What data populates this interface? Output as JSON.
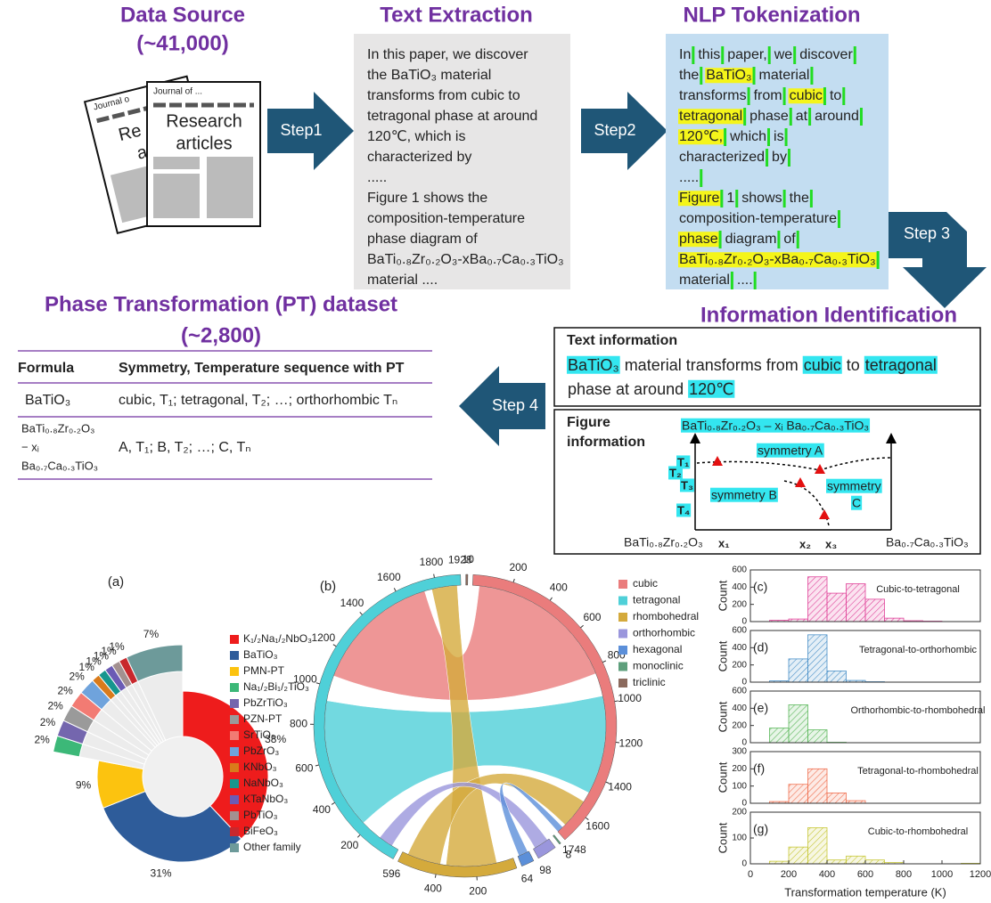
{
  "workflow": {
    "source": {
      "title": "Data Source",
      "count": "(~41,000)",
      "journal_back": "Journal o",
      "paper_back": [
        "Re",
        "a"
      ],
      "journal": "Journal of ...",
      "paper_lines": [
        "Research",
        "articles"
      ]
    },
    "steps": [
      "Step1",
      "Step2",
      "Step 3",
      "Step 4"
    ],
    "extraction": {
      "title": "Text Extraction",
      "lines": [
        "In this paper, we discover",
        "the BaTiO₃ material",
        "transforms from cubic to",
        "tetragonal phase at around",
        "120℃, which is",
        "characterized by",
        ".....",
        "Figure 1 shows the",
        "composition-temperature",
        "phase diagram of",
        "BaTi₀.₈Zr₀.₂O₃-xBa₀.₇Ca₀.₃TiO₃",
        "material ...."
      ]
    },
    "tokenization": {
      "title": "NLP Tokenization",
      "lines": [
        [
          "In",
          "this",
          "paper,",
          "we",
          "discover"
        ],
        [
          "the",
          {
            "text": "BaTiO₃",
            "highlight": true
          },
          "material"
        ],
        [
          "transforms",
          "from",
          {
            "text": "cubic",
            "highlight": true
          },
          "to"
        ],
        [
          {
            "text": "tetragonal",
            "highlight": true
          },
          "phase",
          "at",
          "around"
        ],
        [
          {
            "text": "120℃,",
            "highlight": true
          },
          "which",
          "is"
        ],
        [
          "characterized",
          "by"
        ],
        [
          "....."
        ],
        [
          {
            "text": "Figure",
            "highlight": true
          },
          "1",
          "shows",
          "the"
        ],
        [
          "composition-temperature"
        ],
        [
          {
            "text": "phase",
            "highlight": true
          },
          "diagram",
          "of"
        ],
        [
          {
            "text": "BaTi₀.₈Zr₀.₂O₃-xBa₀.₇Ca₀.₃TiO₃",
            "highlight": true
          }
        ],
        [
          "material",
          "...."
        ]
      ]
    },
    "identification": {
      "title": "Information Identification",
      "text_info": {
        "title": "Text information",
        "lines": [
          [
            {
              "text": "BaTiO₃",
              "highlight": true
            },
            "material transforms from",
            {
              "text": "cubic",
              "highlight": true
            },
            "to",
            {
              "text": "tetragonal",
              "highlight": true
            }
          ],
          [
            "phase at around",
            {
              "text": "120℃",
              "highlight": true
            }
          ]
        ]
      },
      "figure_info": {
        "title": [
          "Figure",
          "information"
        ],
        "formula": "BaTi₀.₈Zr₀.₂O₃ – xᵢ Ba₀.₇Ca₀.₃TiO₃",
        "regions": [
          "symmetry A",
          "symmetry B",
          "symmetry",
          "C"
        ],
        "temps": [
          "T₁",
          "T₂",
          "T₃",
          "T₄"
        ],
        "xs": [
          "x₁",
          "x₂",
          "x₃"
        ],
        "left_end": "BaTi₀.₈Zr₀.₂O₃",
        "right_end": "Ba₀.₇Ca₀.₃TiO₃"
      }
    }
  },
  "dataset": {
    "title": "Phase Transformation (PT) dataset",
    "count": "(~2,800)",
    "headers": [
      "Formula",
      "Symmetry, Temperature sequence with PT"
    ],
    "rows": [
      [
        "BaTiO₃",
        "cubic, T₁; tetragonal, T₂; …; orthorhombic Tₙ"
      ],
      [
        [
          "BaTi₀.₈Zr₀.₂O₃",
          "− xᵢ",
          "Ba₀.₇Ca₀.₃TiO₃"
        ],
        "A, T₁; B, T₂; …; C, Tₙ"
      ]
    ]
  },
  "chart_data": [
    {
      "type": "pie",
      "panel": "(a)",
      "categories": [
        "K₁/₂Na₁/₂NbO₃",
        "BaTiO₃",
        "PMN-PT",
        "Na₁/₂Bi₁/₂TiO₃",
        "PbZrTiO₃",
        "PZN-PT",
        "SrTiO₃",
        "PbZrO₃",
        "KNbO₃",
        "NaNbO₃",
        "KTaNbO₃",
        "PbTiO₃",
        "BiFeO₃",
        "Other family"
      ],
      "values": [
        38,
        31,
        9,
        2,
        2,
        2,
        2,
        2,
        1,
        1,
        1,
        1,
        1,
        7
      ],
      "value_labels": [
        "38%",
        "31%",
        "9%",
        "2%",
        "2%",
        "2%",
        "2%",
        "2%",
        "1%",
        "1%",
        "1%",
        "1%",
        "1%",
        "7%"
      ],
      "colors": [
        "#ee1c1c",
        "#2e5c9a",
        "#fcc30f",
        "#3cb878",
        "#7466ae",
        "#9a9a9a",
        "#f27b73",
        "#6fa3dc",
        "#d97b1b",
        "#17968e",
        "#6b5bb5",
        "#a39090",
        "#c8282d",
        "#6d9a9a"
      ]
    },
    {
      "type": "chord",
      "panel": "(b)",
      "categories": [
        "cubic",
        "tetragonal",
        "rhombohedral",
        "orthorhombic",
        "hexagonal",
        "monoclinic",
        "triclinic"
      ],
      "values": [
        1748,
        1928,
        596,
        98,
        64,
        8,
        10
      ],
      "colors": [
        "#ea7c7c",
        "#4fd0d8",
        "#d4aa3c",
        "#9a96dc",
        "#5b8fd9",
        "#5e9f7c",
        "#8b6a5d"
      ],
      "ticks": [
        [
          200,
          400,
          600,
          800,
          1000,
          1200,
          1400,
          1600
        ],
        [
          200,
          400,
          600,
          800,
          1000,
          1200,
          1400,
          1600,
          1800
        ],
        [
          200,
          400
        ],
        [],
        [],
        [],
        []
      ]
    },
    {
      "type": "histogram",
      "panel": "(c)",
      "annotation": "Cubic-to-tetragonal",
      "color": "#e0449a",
      "ylabel": "Count",
      "bins": [
        0,
        100,
        200,
        300,
        400,
        500,
        600,
        700,
        800,
        900,
        1000,
        1100,
        1200
      ],
      "counts": [
        0,
        15,
        30,
        520,
        330,
        440,
        260,
        40,
        10,
        5,
        0,
        0
      ],
      "xlim": [
        0,
        1200
      ],
      "ylim": [
        0,
        600
      ],
      "yticks": [
        0,
        200,
        400,
        600
      ]
    },
    {
      "type": "histogram",
      "panel": "(d)",
      "annotation": "Tetragonal-to-orthorhombic",
      "color": "#4a90c8",
      "ylabel": "Count",
      "bins": [
        0,
        100,
        200,
        300,
        400,
        500,
        600,
        700,
        800,
        900,
        1000,
        1100,
        1200
      ],
      "counts": [
        0,
        15,
        270,
        550,
        130,
        20,
        5,
        0,
        0,
        0,
        0,
        0
      ],
      "xlim": [
        0,
        1200
      ],
      "ylim": [
        0,
        600
      ],
      "yticks": [
        0,
        200,
        400,
        600
      ]
    },
    {
      "type": "histogram",
      "panel": "(e)",
      "annotation": "Orthorhombic-to-rhombohedral",
      "color": "#5cb85c",
      "ylabel": "Count",
      "bins": [
        0,
        100,
        200,
        300,
        400,
        500,
        600,
        700,
        800,
        900,
        1000,
        1100,
        1200
      ],
      "counts": [
        0,
        170,
        440,
        150,
        5,
        0,
        0,
        0,
        0,
        0,
        0,
        0
      ],
      "xlim": [
        0,
        1200
      ],
      "ylim": [
        0,
        600
      ],
      "yticks": [
        0,
        200,
        400,
        600
      ]
    },
    {
      "type": "histogram",
      "panel": "(f)",
      "annotation": "Tetragonal-to-rhombohedral",
      "color": "#f07050",
      "ylabel": "Count",
      "bins": [
        0,
        100,
        200,
        300,
        400,
        500,
        600,
        700,
        800,
        900,
        1000,
        1100,
        1200
      ],
      "counts": [
        0,
        10,
        110,
        200,
        60,
        15,
        0,
        0,
        0,
        0,
        0,
        0
      ],
      "xlim": [
        0,
        1200
      ],
      "ylim": [
        0,
        300
      ],
      "yticks": [
        0,
        100,
        200,
        300
      ]
    },
    {
      "type": "histogram",
      "panel": "(g)",
      "annotation": "Cubic-to-rhombohedral",
      "color": "#c8c83a",
      "ylabel": "Count",
      "bins": [
        0,
        100,
        200,
        300,
        400,
        500,
        600,
        700,
        800,
        900,
        1000,
        1100,
        1200
      ],
      "counts": [
        0,
        10,
        65,
        140,
        15,
        30,
        15,
        5,
        0,
        0,
        0,
        2
      ],
      "xlim": [
        0,
        1200
      ],
      "ylim": [
        0,
        200
      ],
      "yticks": [
        0,
        100,
        200
      ],
      "xticks": [
        0,
        200,
        400,
        600,
        800,
        1000,
        1200
      ],
      "xlabel": "Transformation temperature (K)"
    }
  ]
}
